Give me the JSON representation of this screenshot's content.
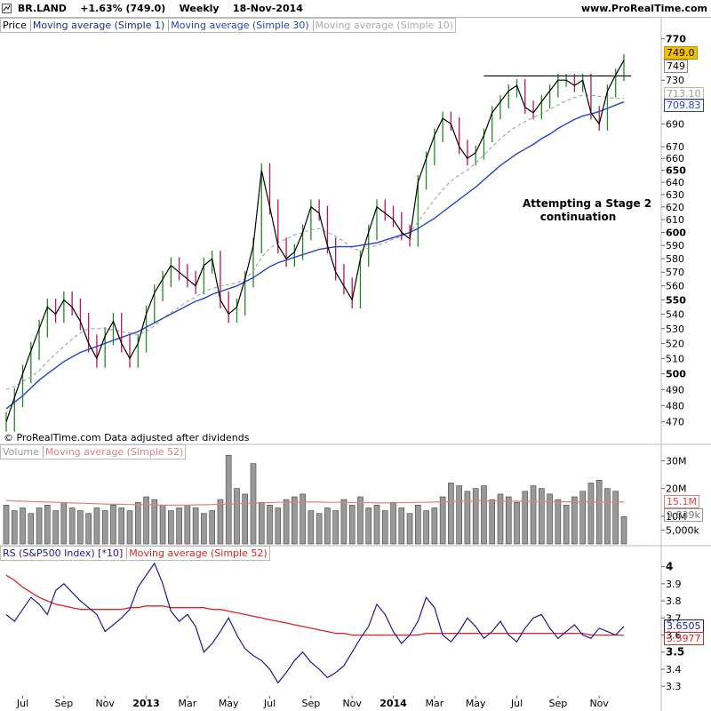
{
  "header": {
    "symbol": "BR.LAND",
    "change": "+1.63% (749.0)",
    "period": "Weekly",
    "date": "18-Nov-2014",
    "site": "www.ProRealTime.com"
  },
  "price_panel": {
    "legend": {
      "price": "Price",
      "ma1": "Moving average (Simple 1)",
      "ma30": "Moving average (Simple 30)",
      "ma10": "Moving average (Simple 10)"
    },
    "annotation_line1": "Attempting a Stage 2",
    "annotation_line2": "continuation",
    "footer": "© ProRealTime.com  Data adjusted after dividends",
    "last_price_label": "749.0",
    "last_close_label": "749",
    "ma10_label": "713.10",
    "ma30_label": "709.83"
  },
  "volume_panel": {
    "legend": {
      "volume": "Volume",
      "ma52": "Moving average (Simple 52)"
    },
    "ma_label": "15.1M",
    "last_label": "9,839k"
  },
  "rs_panel": {
    "legend": {
      "rs": "RS (S&P500 Index) [*10]",
      "ma52": "Moving average (Simple 52)"
    },
    "last_label": "3.6505",
    "ma_label": "3.5977"
  },
  "colors": {
    "up_bar": "#1f8a1f",
    "down_bar": "#c01545",
    "ma1": "#000000",
    "ma30": "#2244cc",
    "ma10": "#999999",
    "volume_bar": "#888888",
    "volume_ma": "#e08080",
    "rs_line": "#1a1a99",
    "rs_ma": "#dd2222",
    "highlight": "#f0c000"
  },
  "chart_data": [
    {
      "type": "line",
      "panel": "price",
      "title": "BR.LAND Weekly",
      "x_ticks": [
        "Jul",
        "Sep",
        "Nov",
        "2013",
        "Mar",
        "May",
        "Jul",
        "Sep",
        "Nov",
        "2014",
        "Mar",
        "May",
        "Jul",
        "Sep",
        "Nov"
      ],
      "y_ticks": [
        470,
        480,
        490,
        500,
        510,
        520,
        530,
        540,
        550,
        560,
        570,
        580,
        590,
        600,
        610,
        620,
        630,
        640,
        650,
        660,
        670,
        690,
        730,
        770
      ],
      "ylim": [
        465,
        775
      ],
      "scale": "log",
      "resistance_level": 734,
      "series": [
        {
          "name": "Moving average (Simple 1)",
          "values": [
            470,
            485,
            500,
            515,
            530,
            545,
            540,
            550,
            545,
            535,
            520,
            510,
            525,
            535,
            520,
            510,
            520,
            540,
            555,
            565,
            575,
            570,
            565,
            560,
            575,
            580,
            550,
            540,
            545,
            565,
            590,
            650,
            620,
            590,
            580,
            585,
            600,
            620,
            615,
            590,
            570,
            560,
            550,
            580,
            600,
            620,
            615,
            610,
            600,
            595,
            640,
            660,
            680,
            695,
            690,
            670,
            660,
            665,
            680,
            700,
            710,
            720,
            725,
            705,
            700,
            710,
            720,
            730,
            730,
            725,
            730,
            700,
            690,
            720,
            735,
            749
          ]
        },
        {
          "name": "Moving average (Simple 10)",
          "values": [
            490,
            492,
            495,
            498,
            502,
            508,
            513,
            518,
            523,
            527,
            530,
            530,
            530,
            529,
            528,
            527,
            526,
            528,
            532,
            537,
            541,
            545,
            549,
            552,
            556,
            558,
            560,
            561,
            562,
            565,
            571,
            581,
            588,
            592,
            595,
            598,
            600,
            602,
            603,
            600,
            597,
            593,
            588,
            586,
            588,
            590,
            592,
            595,
            597,
            600,
            608,
            617,
            626,
            634,
            641,
            646,
            650,
            656,
            663,
            670,
            677,
            683,
            688,
            692,
            696,
            699,
            703,
            707,
            711,
            714,
            716,
            716,
            715,
            714,
            713,
            713
          ]
        },
        {
          "name": "Moving average (Simple 30)",
          "values": [
            478,
            482,
            486,
            491,
            496,
            500,
            504,
            508,
            511,
            514,
            516,
            518,
            520,
            522,
            524,
            526,
            528,
            531,
            534,
            537,
            540,
            543,
            546,
            549,
            551,
            554,
            556,
            558,
            560,
            563,
            566,
            570,
            574,
            577,
            579,
            581,
            583,
            585,
            587,
            588,
            589,
            589,
            589,
            590,
            591,
            592,
            594,
            596,
            598,
            600,
            603,
            607,
            611,
            616,
            621,
            626,
            631,
            636,
            642,
            648,
            654,
            659,
            664,
            668,
            672,
            677,
            681,
            686,
            690,
            694,
            697,
            699,
            701,
            704,
            707,
            709.83
          ]
        }
      ]
    },
    {
      "type": "bar",
      "panel": "volume",
      "y_ticks": [
        "5,000k",
        "10M",
        "20M",
        "30M"
      ],
      "ylim": [
        0,
        34
      ],
      "unit": "M",
      "values": [
        14,
        12,
        13,
        11,
        13,
        14,
        12,
        15,
        13,
        12,
        11,
        13,
        12,
        14,
        13,
        12,
        15,
        17,
        16,
        14,
        12,
        13,
        14,
        13,
        11,
        12,
        16,
        32,
        20,
        18,
        29,
        15,
        14,
        13,
        16,
        17,
        18,
        12,
        11,
        13,
        12,
        16,
        14,
        17,
        13,
        14,
        12,
        15,
        13,
        11,
        14,
        12,
        13,
        17,
        22,
        21,
        19,
        20,
        21,
        16,
        18,
        17,
        15,
        19,
        21,
        20,
        18,
        16,
        14,
        17,
        19,
        22,
        23,
        20,
        19,
        9.839
      ],
      "series": [
        {
          "name": "Moving average (Simple 52)",
          "values": [
            15.6,
            15.5,
            15.4,
            15.3,
            15.2,
            15.1,
            15.0,
            14.9,
            14.8,
            14.7,
            14.6,
            14.5,
            14.4,
            14.3,
            14.3,
            14.2,
            14.2,
            14.1,
            14.1,
            14.0,
            14.0,
            14.0,
            14.0,
            14.1,
            14.1,
            14.2,
            14.3,
            14.4,
            14.5,
            14.6,
            14.7,
            14.8,
            14.9,
            15.0,
            15.0,
            15.1,
            15.1,
            15.1,
            15.1,
            15.0,
            15.0,
            15.0,
            14.9,
            14.9,
            14.9,
            14.8,
            14.8,
            14.8,
            14.9,
            14.9,
            15.0,
            15.0,
            15.1,
            15.2,
            15.3,
            15.4,
            15.4,
            15.5,
            15.5,
            15.5,
            15.5,
            15.5,
            15.4,
            15.4,
            15.3,
            15.3,
            15.3,
            15.2,
            15.2,
            15.2,
            15.2,
            15.1,
            15.1,
            15.1,
            15.1,
            15.1
          ]
        }
      ]
    },
    {
      "type": "line",
      "panel": "rs",
      "y_ticks": [
        3.3,
        3.4,
        3.5,
        3.6,
        3.7,
        3.8,
        3.9,
        4
      ],
      "ylim": [
        3.28,
        4.05
      ],
      "series": [
        {
          "name": "RS (S&P500 Index) [*10]",
          "values": [
            3.72,
            3.68,
            3.75,
            3.82,
            3.78,
            3.72,
            3.86,
            3.9,
            3.85,
            3.8,
            3.76,
            3.72,
            3.62,
            3.66,
            3.7,
            3.75,
            3.88,
            3.95,
            4.02,
            3.9,
            3.74,
            3.68,
            3.72,
            3.65,
            3.5,
            3.55,
            3.62,
            3.7,
            3.6,
            3.52,
            3.48,
            3.45,
            3.4,
            3.32,
            3.38,
            3.45,
            3.5,
            3.44,
            3.4,
            3.35,
            3.38,
            3.42,
            3.5,
            3.58,
            3.65,
            3.78,
            3.72,
            3.62,
            3.55,
            3.6,
            3.68,
            3.82,
            3.76,
            3.6,
            3.56,
            3.62,
            3.7,
            3.65,
            3.58,
            3.62,
            3.68,
            3.6,
            3.56,
            3.64,
            3.7,
            3.72,
            3.64,
            3.58,
            3.62,
            3.66,
            3.6,
            3.58,
            3.64,
            3.62,
            3.6,
            3.6505
          ]
        },
        {
          "name": "Moving average (Simple 52)",
          "values": [
            3.95,
            3.92,
            3.88,
            3.85,
            3.82,
            3.8,
            3.78,
            3.77,
            3.76,
            3.75,
            3.75,
            3.75,
            3.75,
            3.75,
            3.75,
            3.76,
            3.76,
            3.77,
            3.77,
            3.77,
            3.76,
            3.76,
            3.76,
            3.76,
            3.76,
            3.75,
            3.75,
            3.74,
            3.73,
            3.72,
            3.71,
            3.7,
            3.69,
            3.68,
            3.67,
            3.66,
            3.65,
            3.64,
            3.63,
            3.62,
            3.61,
            3.61,
            3.6,
            3.6,
            3.6,
            3.6,
            3.6,
            3.6,
            3.6,
            3.6,
            3.6,
            3.61,
            3.61,
            3.61,
            3.61,
            3.61,
            3.61,
            3.61,
            3.61,
            3.61,
            3.61,
            3.61,
            3.61,
            3.61,
            3.61,
            3.61,
            3.61,
            3.61,
            3.61,
            3.61,
            3.61,
            3.6,
            3.6,
            3.6,
            3.6,
            3.5977
          ]
        }
      ]
    }
  ]
}
